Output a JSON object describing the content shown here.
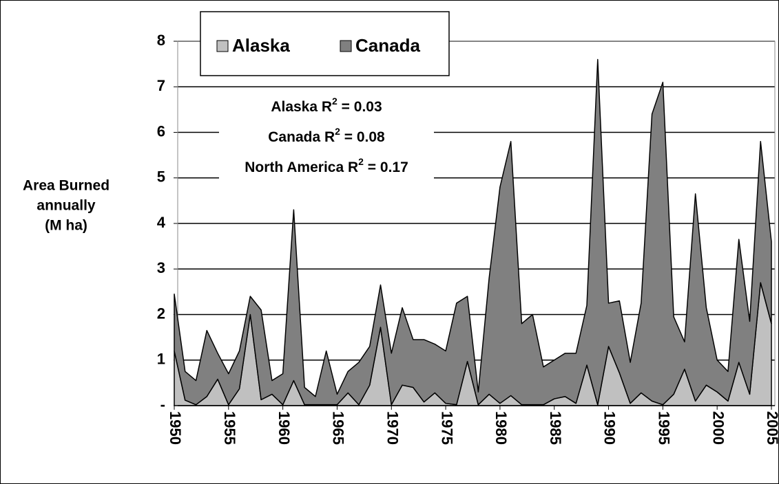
{
  "chart_data": {
    "type": "stacked-area",
    "y_label": [
      "Area Burned",
      "annually",
      "(M ha)"
    ],
    "annotations": [
      {
        "text": "Alaska R",
        "exponent": "2",
        "rest": " = 0.03"
      },
      {
        "text": "Canada R",
        "exponent": "2",
        "rest": " = 0.08"
      },
      {
        "text": "North America R",
        "exponent": "2",
        "rest": " = 0.17"
      }
    ],
    "x": [
      1950,
      1951,
      1952,
      1953,
      1954,
      1955,
      1956,
      1957,
      1958,
      1959,
      1960,
      1961,
      1962,
      1963,
      1964,
      1965,
      1966,
      1967,
      1968,
      1969,
      1970,
      1971,
      1972,
      1973,
      1974,
      1975,
      1976,
      1977,
      1978,
      1979,
      1980,
      1981,
      1982,
      1983,
      1984,
      1985,
      1986,
      1987,
      1988,
      1989,
      1990,
      1991,
      1992,
      1993,
      1994,
      1995,
      1996,
      1997,
      1998,
      1999,
      2000,
      2001,
      2002,
      2003,
      2004,
      2005
    ],
    "series": [
      {
        "name": "Alaska",
        "color": "#c0c0c0",
        "values": [
          1.2,
          0.12,
          0.02,
          0.2,
          0.58,
          0.02,
          0.37,
          2.0,
          0.13,
          0.25,
          0.02,
          0.55,
          0.02,
          0.02,
          0.02,
          0.02,
          0.28,
          0.02,
          0.45,
          1.72,
          0.02,
          0.45,
          0.4,
          0.08,
          0.28,
          0.05,
          0.02,
          0.97,
          0.02,
          0.25,
          0.05,
          0.22,
          0.02,
          0.02,
          0.02,
          0.15,
          0.2,
          0.05,
          0.89,
          0.02,
          1.3,
          0.72,
          0.05,
          0.28,
          0.1,
          0.02,
          0.25,
          0.8,
          0.1,
          0.45,
          0.3,
          0.1,
          0.95,
          0.25,
          2.7,
          1.8
        ]
      },
      {
        "name": "Canada",
        "color": "#808080",
        "values": [
          1.25,
          0.63,
          0.53,
          1.45,
          0.57,
          0.68,
          0.83,
          0.4,
          1.97,
          0.3,
          0.68,
          3.75,
          0.38,
          0.18,
          1.18,
          0.23,
          0.47,
          0.93,
          0.85,
          0.93,
          1.13,
          1.7,
          1.05,
          1.37,
          1.07,
          1.15,
          2.23,
          1.43,
          0.28,
          2.55,
          4.75,
          5.58,
          1.78,
          1.98,
          0.83,
          0.85,
          0.95,
          1.1,
          1.31,
          7.58,
          0.95,
          1.58,
          0.9,
          1.97,
          6.3,
          7.08,
          1.7,
          0.6,
          4.55,
          1.7,
          0.7,
          0.65,
          2.7,
          1.6,
          3.1,
          1.8
        ]
      }
    ],
    "xlim": [
      1950,
      2005
    ],
    "xticks": [
      1950,
      1955,
      1960,
      1965,
      1970,
      1975,
      1980,
      1985,
      1990,
      1995,
      2000,
      2005
    ],
    "ylim": [
      0,
      8
    ],
    "yticks": [
      {
        "value": 0,
        "label": "-"
      },
      1,
      2,
      3,
      4,
      5,
      6,
      7,
      8
    ],
    "grid": true,
    "legend": "top-left"
  }
}
